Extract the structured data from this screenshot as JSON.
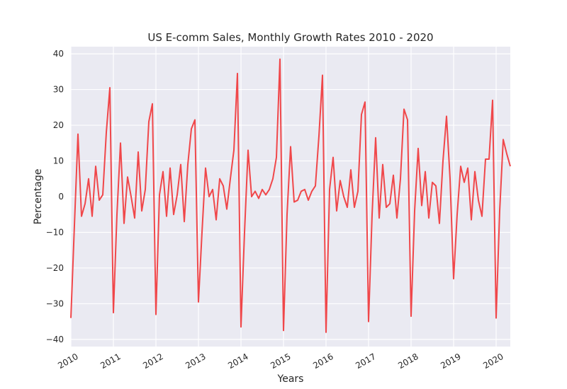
{
  "chart_data": {
    "type": "line",
    "title": "US E-comm Sales, Monthly Growth Rates 2010 - 2020",
    "xlabel": "Years",
    "ylabel": "Percentage",
    "x_axis": "date",
    "x_start": "2010-01",
    "xlim": [
      "2010-01",
      "2020-05"
    ],
    "ylim": [
      -42,
      42
    ],
    "yticks": [
      -40,
      -30,
      -20,
      -10,
      0,
      10,
      20,
      30,
      40
    ],
    "xticks": [
      "2010",
      "2011",
      "2012",
      "2013",
      "2014",
      "2015",
      "2016",
      "2017",
      "2018",
      "2019",
      "2020"
    ],
    "grid": true,
    "legend": "none",
    "series": [
      {
        "color": "#f0474a",
        "values": [
          -34,
          -8,
          17.5,
          -5.5,
          -2,
          5,
          -5.5,
          8.5,
          -1,
          0.5,
          18,
          30.5,
          -32.5,
          -5,
          15,
          -7.5,
          5.5,
          0,
          -6,
          12.5,
          -4,
          2,
          21,
          26,
          -33,
          0.5,
          7,
          -5.5,
          8,
          -5,
          0.5,
          9,
          -7,
          9,
          19,
          21.5,
          -29.5,
          -10,
          8,
          0,
          2,
          -6.5,
          5,
          3,
          -3.5,
          5,
          13,
          34.5,
          -36.5,
          -10,
          13,
          0,
          1.5,
          -0.5,
          2,
          0.5,
          2,
          5,
          11,
          38.5,
          -37.5,
          -5,
          14,
          -1.5,
          -1,
          1.5,
          2,
          -1,
          1.5,
          3,
          17,
          34,
          -38,
          2,
          11,
          -4,
          4.5,
          0,
          -3,
          7.5,
          -3,
          1.5,
          23,
          26.5,
          -35,
          -5,
          16.5,
          -6,
          9,
          -3,
          -2,
          6,
          -6,
          5,
          24.5,
          21.5,
          -33.5,
          -4,
          13.5,
          -2.5,
          7,
          -6,
          4,
          3,
          -7.5,
          10,
          22.5,
          5,
          -23,
          -5,
          8.5,
          4,
          8,
          -6.5,
          7,
          -1,
          -5.5,
          10.5,
          10.5,
          27,
          -34,
          -4,
          16,
          12,
          8.5
        ]
      }
    ]
  }
}
